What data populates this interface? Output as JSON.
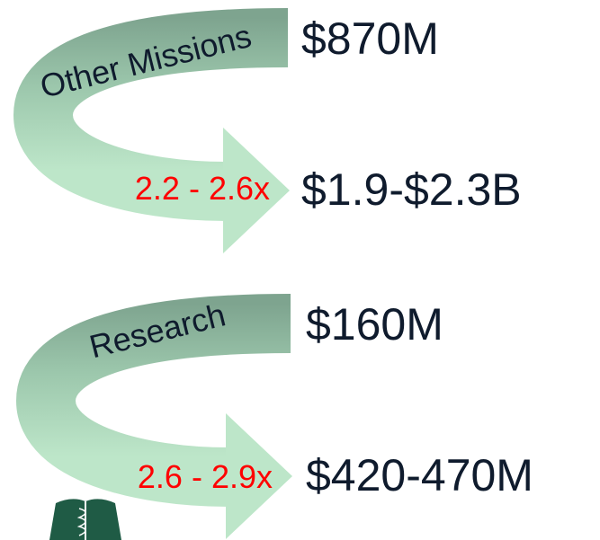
{
  "groups": [
    {
      "label": "Other Missions",
      "from": "$870M",
      "multiplier": "2.2 - 2.6x",
      "to": "$1.9-$2.3B"
    },
    {
      "label": "Research",
      "from": "$160M",
      "multiplier": "2.6 - 2.9x",
      "to": "$420-470M"
    }
  ]
}
